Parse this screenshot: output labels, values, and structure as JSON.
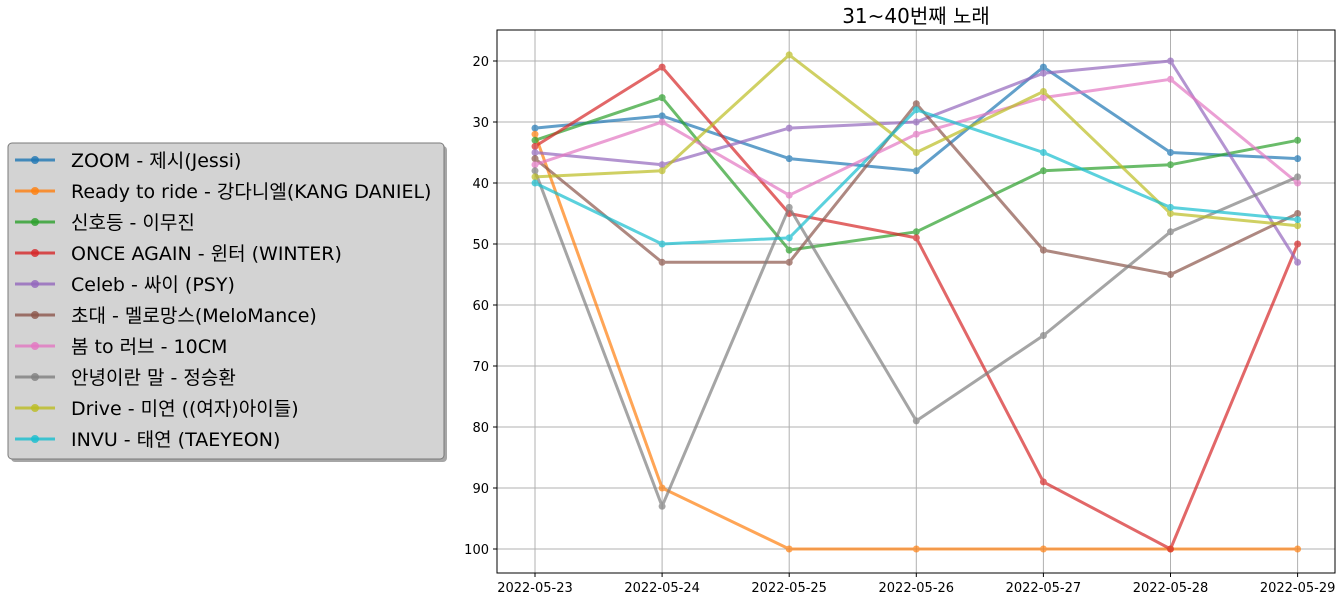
{
  "chart_data": {
    "type": "line",
    "title": "31~40번째 노래",
    "xlabel": "",
    "ylabel": "",
    "x": [
      "2022-05-23",
      "2022-05-24",
      "2022-05-25",
      "2022-05-26",
      "2022-05-27",
      "2022-05-28",
      "2022-05-29"
    ],
    "y_inverted": true,
    "ylim": [
      15,
      104
    ],
    "yticks": [
      20,
      30,
      40,
      50,
      60,
      70,
      80,
      90,
      100
    ],
    "grid": true,
    "legend_position": "left, outside plot",
    "series": [
      {
        "name": "ZOOM - 제시(Jessi)",
        "color": "#1f77b4",
        "values": [
          31,
          29,
          36,
          38,
          21,
          35,
          36
        ]
      },
      {
        "name": "Ready to ride - 강다니엘(KANG DANIEL)",
        "color": "#ff7f0e",
        "values": [
          32,
          90,
          100,
          100,
          100,
          100,
          100
        ]
      },
      {
        "name": "신호등 - 이무진",
        "color": "#2ca02c",
        "values": [
          33,
          26,
          51,
          48,
          38,
          37,
          33
        ]
      },
      {
        "name": "ONCE AGAIN - 윈터 (WINTER)",
        "color": "#d62728",
        "values": [
          34,
          21,
          45,
          49,
          89,
          100,
          50
        ]
      },
      {
        "name": "Celeb - 싸이 (PSY)",
        "color": "#9467bd",
        "values": [
          35,
          37,
          31,
          30,
          22,
          20,
          53
        ]
      },
      {
        "name": "초대 - 멜로망스(MeloMance)",
        "color": "#8c564b",
        "values": [
          36,
          53,
          53,
          27,
          51,
          55,
          45
        ]
      },
      {
        "name": "봄 to 러브 - 10CM",
        "color": "#e377c2",
        "values": [
          37,
          30,
          42,
          32,
          26,
          23,
          40
        ]
      },
      {
        "name": "안녕이란 말 - 정승환",
        "color": "#7f7f7f",
        "values": [
          38,
          93,
          44,
          79,
          65,
          48,
          39
        ]
      },
      {
        "name": "Drive - 미연 ((여자)아이들)",
        "color": "#bcbd22",
        "values": [
          39,
          38,
          19,
          35,
          25,
          45,
          47
        ]
      },
      {
        "name": "INVU - 태연 (TAEYEON)",
        "color": "#17becf",
        "values": [
          40,
          50,
          49,
          28,
          35,
          44,
          46
        ]
      }
    ]
  }
}
